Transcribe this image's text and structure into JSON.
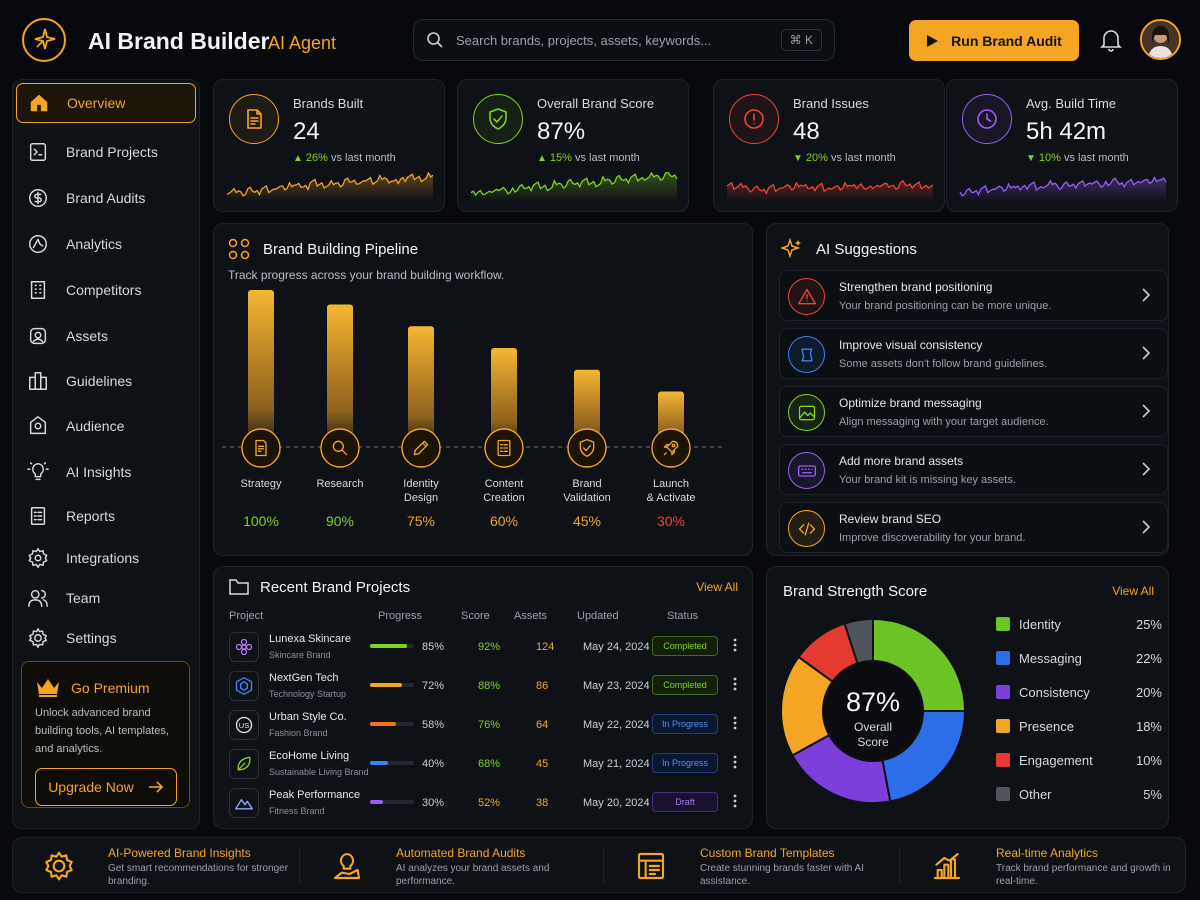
{
  "app": {
    "title": "AI Brand Builder",
    "subtitle": "AI Agent"
  },
  "search": {
    "placeholder": "Search brands, projects, assets, keywords...",
    "shortcut": "⌘ K"
  },
  "header": {
    "run_audit_label": "Run Brand Audit"
  },
  "sidebar": {
    "items": [
      {
        "label": "Overview",
        "icon": "home-icon",
        "active": true
      },
      {
        "label": "Brand Projects",
        "icon": "projects-icon"
      },
      {
        "label": "Brand Audits",
        "icon": "dollar-circle-icon"
      },
      {
        "label": "Analytics",
        "icon": "analytics-icon"
      },
      {
        "label": "Competitors",
        "icon": "building-icon"
      },
      {
        "label": "Assets",
        "icon": "assets-icon"
      },
      {
        "label": "Guidelines",
        "icon": "guidelines-icon"
      },
      {
        "label": "Audience",
        "icon": "audience-icon"
      },
      {
        "label": "AI Insights",
        "icon": "lightbulb-icon"
      },
      {
        "label": "Reports",
        "icon": "reports-icon"
      },
      {
        "label": "Integrations",
        "icon": "gear-icon"
      },
      {
        "label": "Team",
        "icon": "team-icon"
      },
      {
        "label": "Settings",
        "icon": "settings-icon"
      }
    ],
    "premium": {
      "title": "Go Premium",
      "description": "Unlock advanced brand building tools, AI templates, and analytics.",
      "button": "Upgrade Now"
    }
  },
  "stats": [
    {
      "label": "Brands Built",
      "value": "24",
      "change": "26%",
      "direction": "up",
      "suffix": "vs last month",
      "color": "#f5a524",
      "icon": "document-icon"
    },
    {
      "label": "Overall Brand Score",
      "value": "87%",
      "change": "15%",
      "direction": "up",
      "suffix": "vs last month",
      "color": "#7ed321",
      "icon": "shield-check-icon"
    },
    {
      "label": "Brand Issues",
      "value": "48",
      "change": "20%",
      "direction": "down",
      "suffix": "vs last month",
      "color": "#f04438",
      "icon": "alert-icon"
    },
    {
      "label": "Avg. Build Time",
      "value": "5h 42m",
      "change": "10%",
      "direction": "down",
      "suffix": "vs last month",
      "color": "#9b5cf6",
      "icon": "clock-icon"
    }
  ],
  "pipeline": {
    "title": "Brand Building Pipeline",
    "subtitle": "Track progress across your brand building workflow.",
    "stages": [
      {
        "label_1": "Strategy",
        "label_2": "",
        "pct": "100%",
        "value": 100,
        "color": "#7ed321",
        "icon": "strategy-icon"
      },
      {
        "label_1": "Research",
        "label_2": "",
        "pct": "90%",
        "value": 90,
        "color": "#7ed321",
        "icon": "research-icon"
      },
      {
        "label_1": "Identity",
        "label_2": "Design",
        "pct": "75%",
        "value": 75,
        "color": "#f5a524",
        "icon": "pencil-icon"
      },
      {
        "label_1": "Content",
        "label_2": "Creation",
        "pct": "60%",
        "value": 60,
        "color": "#f5a524",
        "icon": "content-icon"
      },
      {
        "label_1": "Brand",
        "label_2": "Validation",
        "pct": "45%",
        "value": 45,
        "color": "#f5a524",
        "icon": "validation-icon"
      },
      {
        "label_1": "Launch",
        "label_2": "& Activate",
        "pct": "30%",
        "value": 30,
        "color": "#f04438",
        "icon": "rocket-icon"
      }
    ]
  },
  "suggestions": {
    "title": "AI Suggestions",
    "items": [
      {
        "title": "Strengthen brand positioning",
        "desc": "Your brand positioning can be more unique.",
        "color": "#f04438",
        "icon": "warning-icon"
      },
      {
        "title": "Improve visual consistency",
        "desc": "Some assets don't follow brand guidelines.",
        "color": "#3b82f6",
        "icon": "consistency-icon"
      },
      {
        "title": "Optimize brand messaging",
        "desc": "Align messaging with your target audience.",
        "color": "#7ed321",
        "icon": "image-icon"
      },
      {
        "title": "Add more brand assets",
        "desc": "Your brand kit is missing key assets.",
        "color": "#9b5cf6",
        "icon": "keyboard-icon"
      },
      {
        "title": "Review brand SEO",
        "desc": "Improve discoverability for your brand.",
        "color": "#f5a524",
        "icon": "code-icon"
      }
    ]
  },
  "projects": {
    "title": "Recent Brand Projects",
    "view_all": "View All",
    "columns": [
      "Project",
      "Progress",
      "Score",
      "Assets",
      "Updated",
      "Status"
    ],
    "rows": [
      {
        "name": "Lunexa Skincare",
        "category": "Skincare Brand",
        "progress": "85%",
        "progress_value": 85,
        "progress_color": "#7ed321",
        "score": "92%",
        "score_color": "#7ed321",
        "assets": "124",
        "updated": "May 24, 2024",
        "status": "Completed",
        "status_type": "completed",
        "icon": "flower-icon",
        "icon_color": "#b77cf6"
      },
      {
        "name": "NextGen Tech",
        "category": "Technology Startup",
        "progress": "72%",
        "progress_value": 72,
        "progress_color": "#f5a524",
        "score": "88%",
        "score_color": "#7ed321",
        "assets": "86",
        "updated": "May 23, 2024",
        "status": "Completed",
        "status_type": "completed",
        "icon": "hexagon-icon",
        "icon_color": "#3b82f6"
      },
      {
        "name": "Urban Style Co.",
        "category": "Fashion Brand",
        "progress": "58%",
        "progress_value": 58,
        "progress_color": "#f97316",
        "score": "76%",
        "score_color": "#7ed321",
        "assets": "64",
        "updated": "May 22, 2024",
        "status": "In Progress",
        "status_type": "progress",
        "icon": "us-logo-icon",
        "icon_color": "#e6e8eb"
      },
      {
        "name": "EcoHome Living",
        "category": "Sustainable Living Brand",
        "progress": "40%",
        "progress_value": 40,
        "progress_color": "#3b82f6",
        "score": "68%",
        "score_color": "#7ed321",
        "assets": "45",
        "updated": "May 21, 2024",
        "status": "In Progress",
        "status_type": "progress",
        "icon": "leaf-icon",
        "icon_color": "#7ed321"
      },
      {
        "name": "Peak Performance",
        "category": "Fitness Brand",
        "progress": "30%",
        "progress_value": 30,
        "progress_color": "#9b5cf6",
        "score": "52%",
        "score_color": "#f5a524",
        "assets": "38",
        "updated": "May 20, 2024",
        "status": "Draft",
        "status_type": "draft",
        "icon": "mountain-icon",
        "icon_color": "#8fa6ff"
      }
    ]
  },
  "strength": {
    "title": "Brand Strength Score",
    "view_all": "View All",
    "center_value": "87%",
    "center_label_1": "Overall",
    "center_label_2": "Score"
  },
  "chart_data": {
    "type": "pie",
    "title": "Brand Strength Score",
    "categories": [
      "Identity",
      "Messaging",
      "Consistency",
      "Presence",
      "Engagement",
      "Other"
    ],
    "values": [
      25,
      22,
      20,
      18,
      10,
      5
    ],
    "labels": [
      "25%",
      "22%",
      "20%",
      "18%",
      "10%",
      "5%"
    ],
    "colors": [
      "#6cc524",
      "#2b6ee8",
      "#7c3fdc",
      "#f5a524",
      "#e53a2f",
      "#4f555e"
    ],
    "legend": "right"
  },
  "footer": {
    "features": [
      {
        "title": "AI-Powered Brand Insights",
        "desc": "Get smart recommendations for stronger branding.",
        "icon": "gear-brain-icon"
      },
      {
        "title": "Automated Brand Audits",
        "desc": "AI analyzes your brand assets and performance.",
        "icon": "lightbulb-hand-icon"
      },
      {
        "title": "Custom Brand Templates",
        "desc": "Create stunning brands faster with AI assistance.",
        "icon": "template-icon"
      },
      {
        "title": "Real-time Analytics",
        "desc": "Track brand performance and growth in real-time.",
        "icon": "bar-chart-icon"
      }
    ]
  }
}
